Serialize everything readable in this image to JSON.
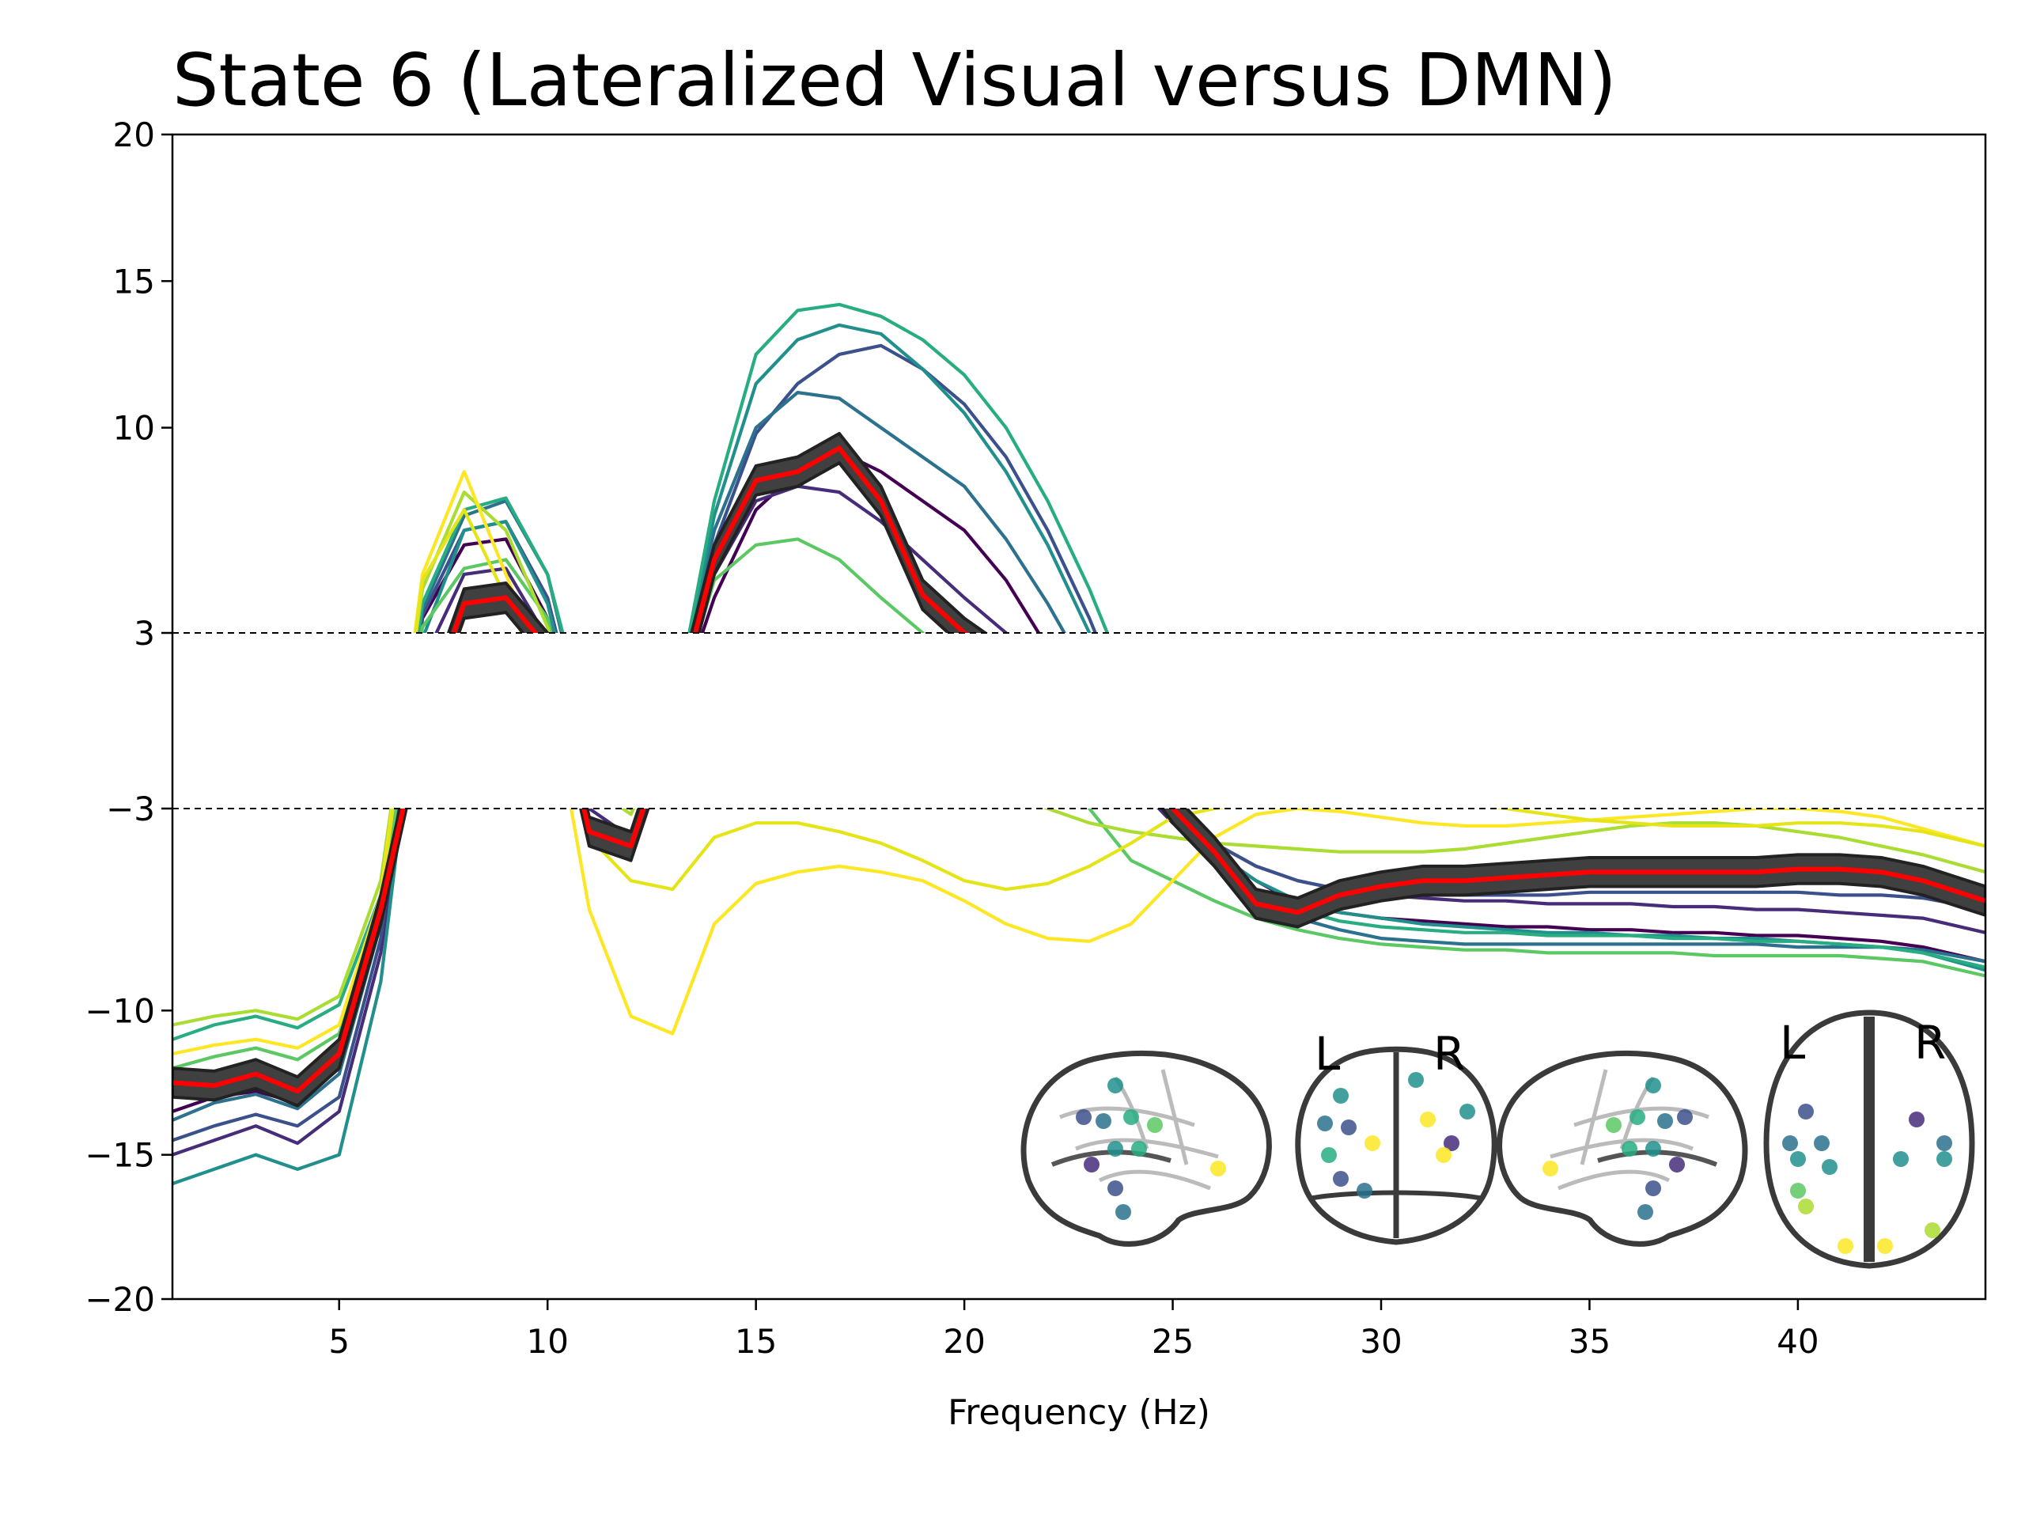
{
  "chart_data": {
    "type": "line",
    "title": "State 6 (Lateralized Visual versus DMN)",
    "xlabel": "Frequency (Hz)",
    "ylabel": "",
    "xlim": [
      1,
      44.5
    ],
    "ylim": [
      -20,
      20
    ],
    "y_scale": "piecewise: the band from -3 to 3 is compressed and left blank; values inside it are not drawn",
    "x_ticks": [
      5,
      10,
      15,
      20,
      25,
      30,
      35,
      40
    ],
    "y_ticks": [
      20,
      15,
      10,
      3,
      -3,
      -10,
      -15,
      -20
    ],
    "y_tick_labels": [
      "20",
      "15",
      "10",
      "3",
      "−3",
      "−10",
      "−15",
      "−20"
    ],
    "threshold_lines": [
      3,
      -3
    ],
    "grid": false,
    "legend": "none",
    "series_note": "20 region spectra coloured on a viridis colormap (values estimated); the mean is drawn in red with a dark confidence band",
    "x": [
      1,
      2,
      3,
      4,
      5,
      6,
      7,
      8,
      9,
      10,
      11,
      12,
      13,
      14,
      15,
      16,
      17,
      18,
      19,
      20,
      21,
      22,
      23,
      24,
      25,
      26,
      27,
      28,
      29,
      30,
      31,
      32,
      33,
      34,
      35,
      36,
      37,
      38,
      39,
      40,
      41,
      42,
      43,
      44.5
    ],
    "mean": {
      "color": "#ff0000",
      "values": [
        -12.5,
        -12.6,
        -12.2,
        -12.8,
        -11.5,
        -6.5,
        0,
        4.0,
        4.2,
        2.5,
        -3.8,
        -4.3,
        0,
        5.5,
        8.2,
        8.5,
        9.3,
        7.5,
        4.3,
        3.0,
        2.0,
        0.5,
        0,
        -1.0,
        -3.0,
        -4.5,
        -6.3,
        -6.6,
        -6.0,
        -5.7,
        -5.5,
        -5.5,
        -5.4,
        -5.3,
        -5.2,
        -5.2,
        -5.2,
        -5.2,
        -5.2,
        -5.1,
        -5.1,
        -5.2,
        -5.5,
        -6.2
      ],
      "band": 0.5,
      "band_color": "#404040"
    },
    "series": [
      {
        "color": "#440154",
        "values": [
          -13.5,
          -13.0,
          -12.8,
          -13.2,
          -12.0,
          -7.0,
          3.5,
          6.0,
          6.2,
          3.5,
          -2.0,
          -2.6,
          0,
          4.2,
          7.2,
          8.5,
          9.2,
          8.5,
          7.5,
          6.5,
          4.8,
          2.5,
          0,
          -2.0,
          -3.5,
          -4.5,
          -5.5,
          -6.3,
          -6.6,
          -6.8,
          -6.9,
          -7.0,
          -7.1,
          -7.1,
          -7.2,
          -7.2,
          -7.3,
          -7.3,
          -7.4,
          -7.4,
          -7.5,
          -7.6,
          -7.8,
          -8.3
        ]
      },
      {
        "color": "#472c7a",
        "values": [
          -15.0,
          -14.5,
          -14.0,
          -14.6,
          -13.5,
          -8.0,
          2.0,
          5.0,
          5.2,
          2.8,
          -3.0,
          -4.0,
          0,
          5.0,
          7.5,
          8.0,
          7.8,
          6.8,
          5.5,
          4.2,
          3.0,
          1.5,
          0,
          -2.0,
          -3.5,
          -4.2,
          -5.0,
          -5.5,
          -5.8,
          -6.0,
          -6.1,
          -6.2,
          -6.2,
          -6.3,
          -6.3,
          -6.3,
          -6.4,
          -6.4,
          -6.5,
          -6.5,
          -6.6,
          -6.7,
          -6.8,
          -7.3
        ]
      },
      {
        "color": "#3b518b",
        "values": [
          -14.5,
          -14.0,
          -13.6,
          -14.0,
          -13.0,
          -7.5,
          3.6,
          6.5,
          6.8,
          4.2,
          -1.5,
          -1.2,
          0,
          6.0,
          9.8,
          11.5,
          12.5,
          12.8,
          12.0,
          10.8,
          9.0,
          6.5,
          3.5,
          0,
          -3.0,
          -4.2,
          -5.0,
          -5.5,
          -5.8,
          -5.9,
          -6.0,
          -6.0,
          -6.0,
          -6.0,
          -5.9,
          -5.9,
          -5.9,
          -5.9,
          -5.9,
          -5.9,
          -6.0,
          -6.0,
          -6.1,
          -6.5
        ]
      },
      {
        "color": "#2c718e",
        "values": [
          -13.8,
          -13.2,
          -12.9,
          -13.4,
          -12.2,
          -7.0,
          3.8,
          7.0,
          7.5,
          5.0,
          -1.0,
          -1.5,
          0,
          6.5,
          10.0,
          11.2,
          11.0,
          10.0,
          9.0,
          8.0,
          6.2,
          4.0,
          1.5,
          0,
          -3.2,
          -4.8,
          -6.0,
          -6.8,
          -7.2,
          -7.5,
          -7.6,
          -7.7,
          -7.7,
          -7.7,
          -7.7,
          -7.7,
          -7.7,
          -7.7,
          -7.7,
          -7.8,
          -7.8,
          -7.8,
          -7.9,
          -8.3
        ]
      },
      {
        "color": "#21908d",
        "values": [
          -16.0,
          -15.5,
          -15.0,
          -15.5,
          -15.0,
          -9.0,
          2.8,
          6.5,
          6.8,
          4.0,
          -1.8,
          -2.0,
          0,
          7.0,
          11.5,
          13.0,
          13.5,
          13.2,
          12.0,
          10.5,
          8.5,
          6.0,
          3.0,
          0,
          -3.0,
          -4.5,
          -5.5,
          -6.2,
          -6.6,
          -6.8,
          -7.0,
          -7.1,
          -7.2,
          -7.3,
          -7.3,
          -7.4,
          -7.4,
          -7.5,
          -7.5,
          -7.6,
          -7.7,
          -7.8,
          -8.0,
          -8.6
        ]
      },
      {
        "color": "#27ad81",
        "values": [
          -11.0,
          -10.5,
          -10.2,
          -10.6,
          -9.8,
          -6.0,
          4.0,
          7.2,
          7.6,
          5.0,
          -0.5,
          -0.8,
          0,
          7.5,
          12.5,
          14.0,
          14.2,
          13.8,
          13.0,
          11.8,
          10.0,
          7.5,
          4.5,
          1.0,
          -3.2,
          -4.5,
          -5.8,
          -6.5,
          -6.9,
          -7.1,
          -7.2,
          -7.3,
          -7.3,
          -7.4,
          -7.4,
          -7.4,
          -7.5,
          -7.5,
          -7.6,
          -7.6,
          -7.7,
          -7.8,
          -8.0,
          -8.5
        ]
      },
      {
        "color": "#5cc863",
        "values": [
          -12.0,
          -11.6,
          -11.3,
          -11.7,
          -10.8,
          -6.5,
          3.2,
          5.2,
          5.5,
          3.5,
          -2.5,
          -3.0,
          0,
          4.8,
          6.0,
          6.2,
          5.5,
          4.2,
          3.0,
          1.5,
          0,
          -1.5,
          -3.0,
          -4.8,
          -5.5,
          -6.2,
          -6.8,
          -7.2,
          -7.5,
          -7.7,
          -7.8,
          -7.9,
          -7.9,
          -8.0,
          -8.0,
          -8.0,
          -8.0,
          -8.1,
          -8.1,
          -8.1,
          -8.1,
          -8.2,
          -8.3,
          -8.8
        ]
      },
      {
        "color": "#aadc32",
        "values": [
          -10.5,
          -10.2,
          -10.0,
          -10.3,
          -9.5,
          -5.5,
          4.5,
          7.8,
          6.5,
          3.2,
          -2.2,
          -3.2,
          0,
          1.2,
          2.0,
          2.0,
          1.5,
          0.5,
          -1.0,
          -2.0,
          -2.5,
          -3.0,
          -3.5,
          -3.8,
          -4.0,
          -4.2,
          -4.3,
          -4.4,
          -4.5,
          -4.5,
          -4.5,
          -4.4,
          -4.2,
          -4.0,
          -3.8,
          -3.6,
          -3.5,
          -3.5,
          -3.6,
          -3.8,
          -4.0,
          -4.3,
          -4.6,
          -5.2
        ]
      },
      {
        "color": "#fde725",
        "values": [
          -11.5,
          -11.2,
          -11.0,
          -11.3,
          -10.5,
          -6.0,
          5.0,
          8.5,
          5.0,
          1.5,
          -6.5,
          -10.2,
          -10.8,
          -7.0,
          -5.6,
          -5.2,
          -5.0,
          -5.2,
          -5.5,
          -6.2,
          -7.0,
          -7.5,
          -7.6,
          -7.0,
          -5.5,
          -4.0,
          -3.2,
          -3.0,
          -3.1,
          -3.3,
          -3.5,
          -3.6,
          -3.6,
          -3.5,
          -3.4,
          -3.3,
          -3.2,
          -3.1,
          -3.0,
          -3.0,
          -3.1,
          -3.3,
          -3.7,
          -4.3
        ]
      },
      {
        "color": "#e4e419",
        "values": [
          -12.5,
          -12.2,
          -12.0,
          -12.5,
          -11.2,
          -6.2,
          4.8,
          7.2,
          4.2,
          1.0,
          -4.0,
          -5.5,
          -5.8,
          -4.0,
          -3.5,
          -3.5,
          -3.8,
          -4.2,
          -4.8,
          -5.5,
          -5.8,
          -5.6,
          -5.0,
          -4.2,
          -3.3,
          -3.0,
          -2.8,
          -2.6,
          -2.5,
          -2.5,
          -2.6,
          -2.8,
          -3.0,
          -3.2,
          -3.4,
          -3.5,
          -3.6,
          -3.6,
          -3.6,
          -3.5,
          -3.5,
          -3.6,
          -3.8,
          -4.3
        ]
      }
    ]
  },
  "inset": {
    "views": [
      "sagittal-left",
      "coronal",
      "sagittal-right",
      "axial"
    ],
    "coronal_letters": [
      "L",
      "R"
    ],
    "axial_letters": [
      "L",
      "R"
    ]
  }
}
